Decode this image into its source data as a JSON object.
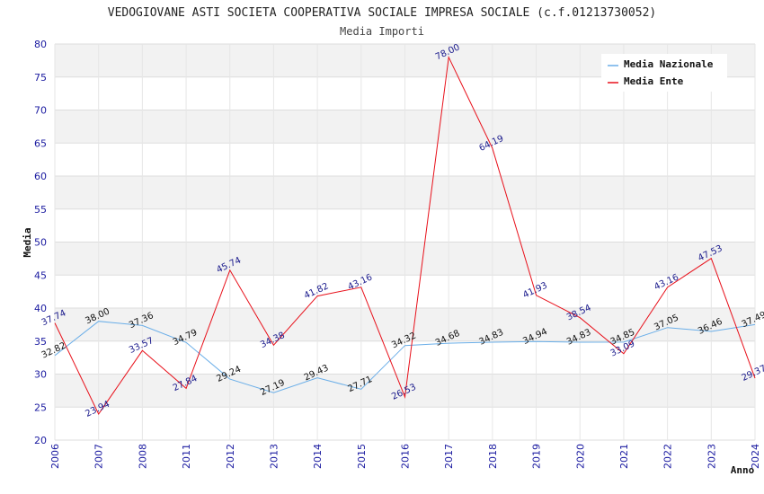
{
  "chart_data": {
    "type": "line",
    "title": "VEDOGIOVANE ASTI SOCIETA COOPERATIVA SOCIALE IMPRESA SOCIALE (c.f.01213730052)",
    "subtitle": "Media Importi",
    "xlabel": "Anno",
    "ylabel": "Media",
    "ylim": [
      20,
      80
    ],
    "yticks": [
      "20",
      "25",
      "30",
      "35",
      "40",
      "45",
      "50",
      "55",
      "60",
      "65",
      "70",
      "75",
      "80"
    ],
    "categories": [
      "2006",
      "2007",
      "2008",
      "2011",
      "2012",
      "2013",
      "2014",
      "2015",
      "2016",
      "2017",
      "2018",
      "2019",
      "2020",
      "2021",
      "2022",
      "2023",
      "2024"
    ],
    "grid": true,
    "legend_position": "top-right",
    "series": [
      {
        "name": "Media Nazionale",
        "color": "#6aaee8",
        "values": [
          32.82,
          38.0,
          37.36,
          34.79,
          29.24,
          27.19,
          29.43,
          27.71,
          34.32,
          34.68,
          34.83,
          34.94,
          34.83,
          34.85,
          37.05,
          36.46,
          37.49
        ],
        "labels": [
          "32.82",
          "38.00",
          "37.36",
          "34.79",
          "29.24",
          "27.19",
          "29.43",
          "27.71",
          "34.32",
          "34.68",
          "34.83",
          "34.94",
          "34.83",
          "34.85",
          "37.05",
          "36.46",
          "37.49"
        ]
      },
      {
        "name": "Media Ente",
        "color": "#e8101a",
        "values": [
          37.74,
          23.94,
          33.57,
          27.84,
          45.74,
          34.38,
          41.82,
          43.16,
          26.53,
          78.0,
          64.19,
          41.93,
          38.54,
          33.09,
          43.16,
          47.53,
          29.37
        ],
        "labels": [
          "37.74",
          "23.94",
          "33.57",
          "27.84",
          "45.74",
          "34.38",
          "41.82",
          "43.16",
          "26.53",
          "78.00",
          "64.19",
          "41.93",
          "38.54",
          "33.09",
          "43.16",
          "47.53",
          "29.37"
        ]
      }
    ]
  }
}
